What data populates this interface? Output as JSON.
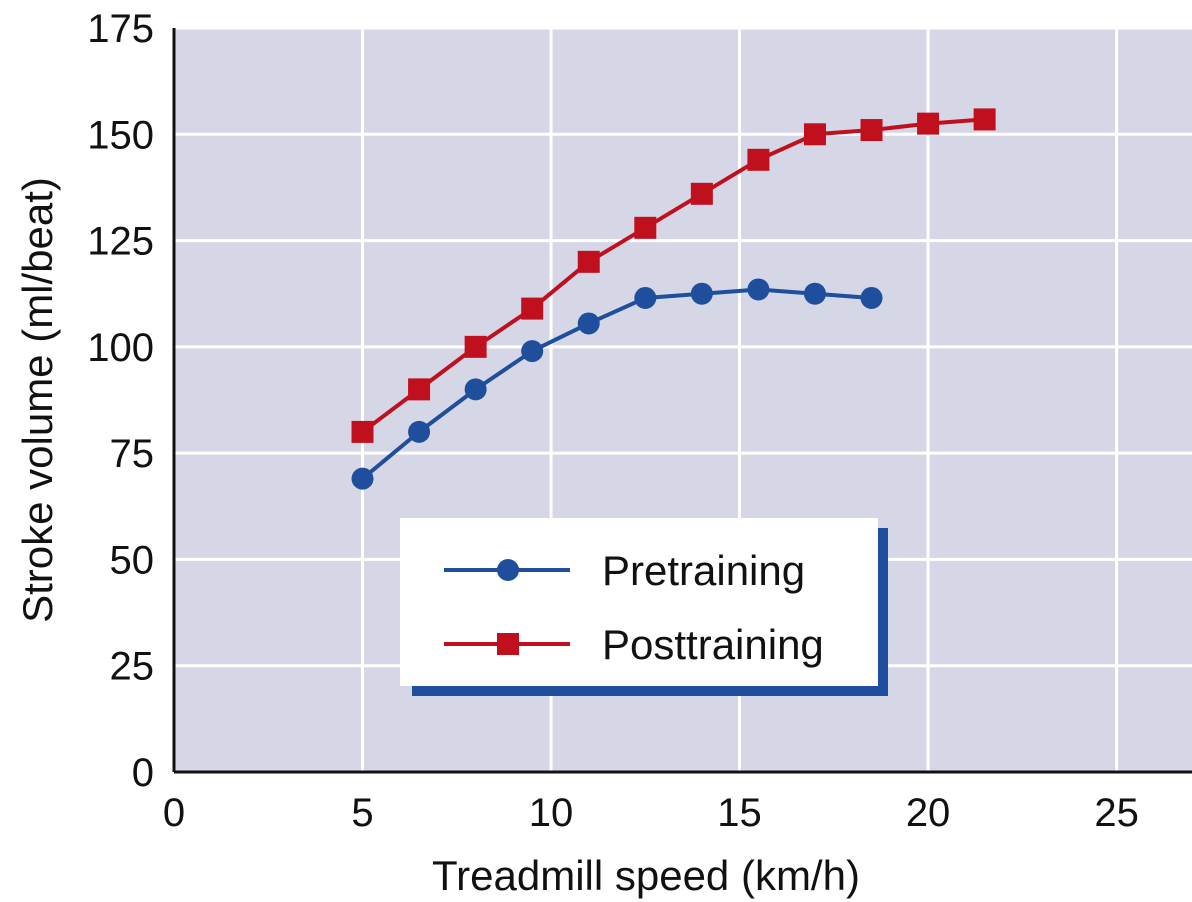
{
  "chart_data": {
    "type": "line",
    "xlabel": "Treadmill speed (km/h)",
    "ylabel": "Stroke volume (ml/beat)",
    "xlim": [
      0,
      27
    ],
    "ylim": [
      0,
      175
    ],
    "x_ticks": [
      "0",
      "5",
      "10",
      "15",
      "20",
      "25"
    ],
    "y_ticks": [
      "0",
      "25",
      "50",
      "75",
      "100",
      "125",
      "150",
      "175"
    ],
    "grid": true,
    "legend_position": "bottom-center",
    "series": [
      {
        "name": "Pretraining",
        "color": "#1f4e9c",
        "marker": "circle",
        "x": [
          5,
          6.5,
          8,
          9.5,
          11,
          12.5,
          14,
          15.5,
          17,
          18.5
        ],
        "y": [
          69,
          80,
          90,
          99,
          105.5,
          111.5,
          112.5,
          113.5,
          112.5,
          111.5
        ]
      },
      {
        "name": "Posttraining",
        "color": "#c0101e",
        "marker": "square",
        "x": [
          5,
          6.5,
          8,
          9.5,
          11,
          12.5,
          14,
          15.5,
          17,
          18.5,
          20,
          21.5
        ],
        "y": [
          80,
          90,
          100,
          109,
          120,
          128,
          136,
          144,
          150,
          151,
          152.5,
          153.5
        ]
      }
    ]
  },
  "colors": {
    "plot_background": "#d5d7e6",
    "grid": "#ffffff",
    "legend_shadow": "#1f4e9c"
  }
}
